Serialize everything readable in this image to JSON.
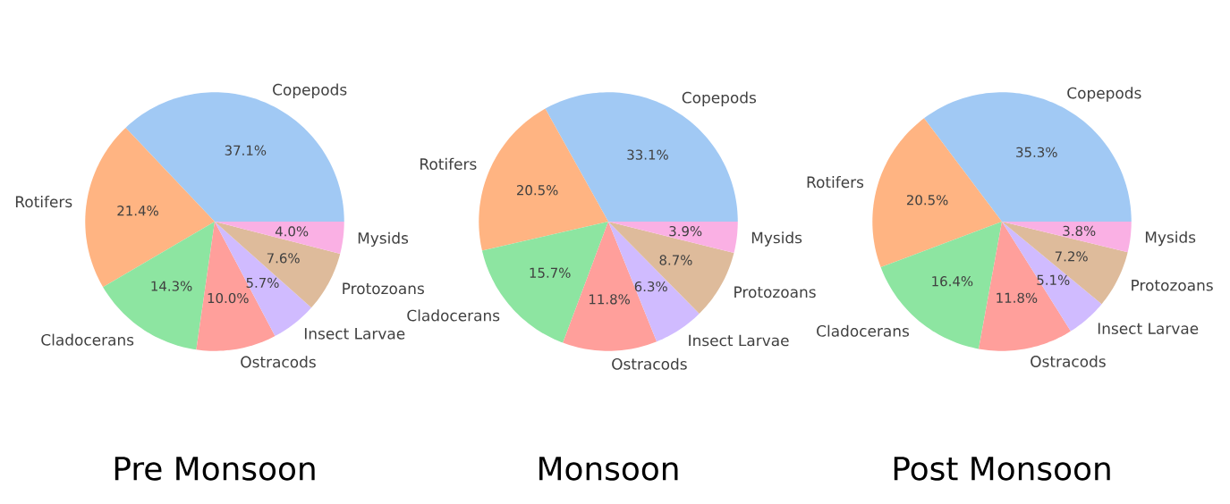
{
  "chart_data": [
    {
      "type": "pie",
      "title": "Pre Monsoon",
      "categories": [
        "Copepods",
        "Rotifers",
        "Cladocerans",
        "Ostracods",
        "Insect Larvae",
        "Protozoans",
        "Mysids"
      ],
      "values": [
        37.1,
        21.4,
        14.3,
        10.0,
        5.7,
        7.6,
        4.0
      ],
      "value_labels": [
        "37.1%",
        "21.4%",
        "14.3%",
        "10.0%",
        "5.7%",
        "7.6%",
        "4.0%"
      ],
      "colors": [
        "#a1c9f4",
        "#ffb482",
        "#8de5a1",
        "#ff9f9b",
        "#d0bbff",
        "#debb9b",
        "#fab0e4"
      ]
    },
    {
      "type": "pie",
      "title": "Monsoon",
      "categories": [
        "Copepods",
        "Rotifers",
        "Cladocerans",
        "Ostracods",
        "Insect Larvae",
        "Protozoans",
        "Mysids"
      ],
      "values": [
        33.1,
        20.5,
        15.7,
        11.8,
        6.3,
        8.7,
        3.9
      ],
      "value_labels": [
        "33.1%",
        "20.5%",
        "15.7%",
        "11.8%",
        "6.3%",
        "8.7%",
        "3.9%"
      ],
      "colors": [
        "#a1c9f4",
        "#ffb482",
        "#8de5a1",
        "#ff9f9b",
        "#d0bbff",
        "#debb9b",
        "#fab0e4"
      ]
    },
    {
      "type": "pie",
      "title": "Post Monsoon",
      "categories": [
        "Copepods",
        "Rotifers",
        "Cladocerans",
        "Ostracods",
        "Insect Larvae",
        "Protozoans",
        "Mysids"
      ],
      "values": [
        35.3,
        20.5,
        16.4,
        11.8,
        5.1,
        7.2,
        3.8
      ],
      "value_labels": [
        "35.3%",
        "20.5%",
        "16.4%",
        "11.8%",
        "5.1%",
        "7.2%",
        "3.8%"
      ],
      "colors": [
        "#a1c9f4",
        "#ffb482",
        "#8de5a1",
        "#ff9f9b",
        "#d0bbff",
        "#debb9b",
        "#fab0e4"
      ]
    }
  ]
}
